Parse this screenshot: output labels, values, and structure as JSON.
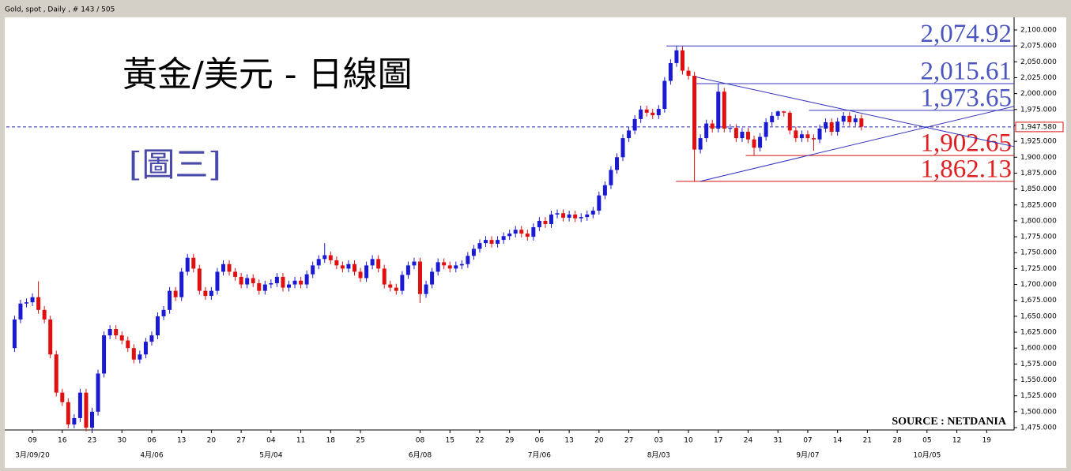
{
  "header": "Gold, spot , Daily , # 143 / 505",
  "chart_data": {
    "type": "candlestick",
    "title": "黃金/美元 - 日線圖",
    "subtitle": "[圖三]",
    "source": "SOURCE : NETDANIA",
    "up_color": "#1a1ad2",
    "down_color": "#e01010",
    "xlim": [
      -1.38,
      167.6
    ],
    "ylim": [
      1471.3,
      2112.4
    ],
    "yticks": [
      {
        "value": 1475,
        "label": "1,475.000"
      },
      {
        "value": 1500,
        "label": "1,500.000"
      },
      {
        "value": 1525,
        "label": "1,525.000"
      },
      {
        "value": 1550,
        "label": "1,550.000"
      },
      {
        "value": 1575,
        "label": "1,575.000"
      },
      {
        "value": 1600,
        "label": "1,600.000"
      },
      {
        "value": 1625,
        "label": "1,625.000"
      },
      {
        "value": 1650,
        "label": "1,650.000"
      },
      {
        "value": 1675,
        "label": "1,675.000"
      },
      {
        "value": 1700,
        "label": "1,700.000"
      },
      {
        "value": 1725,
        "label": "1,725.000"
      },
      {
        "value": 1750,
        "label": "1,750.000"
      },
      {
        "value": 1775,
        "label": "1,775.000"
      },
      {
        "value": 1800,
        "label": "1,800.000"
      },
      {
        "value": 1825,
        "label": "1,825.000"
      },
      {
        "value": 1850,
        "label": "1,850.000"
      },
      {
        "value": 1875,
        "label": "1,875.000"
      },
      {
        "value": 1900,
        "label": "1,900.000"
      },
      {
        "value": 1925,
        "label": "1,925.000"
      },
      {
        "value": 1950,
        "label": "1,950.000"
      },
      {
        "value": 1975,
        "label": "1,975.000"
      },
      {
        "value": 2000,
        "label": "2,000.000"
      },
      {
        "value": 2025,
        "label": "2,025.000"
      },
      {
        "value": 2050,
        "label": "2,050.000"
      },
      {
        "value": 2075,
        "label": "2,075.000"
      },
      {
        "value": 2100,
        "label": "2,100.000"
      }
    ],
    "xticks": [
      {
        "value": 3,
        "label": "09"
      },
      {
        "value": 8,
        "label": "16"
      },
      {
        "value": 13,
        "label": "23"
      },
      {
        "value": 18,
        "label": "30"
      },
      {
        "value": 23,
        "label": "06"
      },
      {
        "value": 28,
        "label": "13"
      },
      {
        "value": 33,
        "label": "20"
      },
      {
        "value": 38,
        "label": "27"
      },
      {
        "value": 43,
        "label": "04"
      },
      {
        "value": 48,
        "label": "11"
      },
      {
        "value": 53,
        "label": "18"
      },
      {
        "value": 58,
        "label": "25"
      },
      {
        "value": 68,
        "label": "08"
      },
      {
        "value": 73,
        "label": "15"
      },
      {
        "value": 78,
        "label": "22"
      },
      {
        "value": 83,
        "label": "29"
      },
      {
        "value": 88,
        "label": "06"
      },
      {
        "value": 93,
        "label": "13"
      },
      {
        "value": 98,
        "label": "20"
      },
      {
        "value": 103,
        "label": "27"
      },
      {
        "value": 108,
        "label": "03"
      },
      {
        "value": 113,
        "label": "10"
      },
      {
        "value": 118,
        "label": "17"
      },
      {
        "value": 123,
        "label": "24"
      },
      {
        "value": 128,
        "label": "31"
      },
      {
        "value": 133,
        "label": "07"
      },
      {
        "value": 138,
        "label": "14"
      },
      {
        "value": 143,
        "label": "21"
      },
      {
        "value": 148,
        "label": "28"
      },
      {
        "value": 153,
        "label": "05"
      },
      {
        "value": 158,
        "label": "12"
      },
      {
        "value": 163,
        "label": "19"
      }
    ],
    "xticks_month": [
      {
        "value": 3,
        "label": "3月/09/20"
      },
      {
        "value": 23,
        "label": "4月/06"
      },
      {
        "value": 43,
        "label": "5月/04"
      },
      {
        "value": 68,
        "label": "6月/08"
      },
      {
        "value": 88,
        "label": "7月/06"
      },
      {
        "value": 108,
        "label": "8月/03"
      },
      {
        "value": 133,
        "label": "9月/07"
      },
      {
        "value": 153,
        "label": "10月/05"
      }
    ],
    "current": {
      "value": 1947.58,
      "label": "1,947.580",
      "color": "#2020b0"
    },
    "levels": [
      {
        "value": 2074.92,
        "label": "2,074.92",
        "start": 109.3,
        "color": "#3535c0",
        "text_color": "#4a55c0"
      },
      {
        "value": 2015.61,
        "label": "2,015.61",
        "start": 113.9,
        "color": "#3535c0",
        "text_color": "#4a55c0"
      },
      {
        "value": 1973.65,
        "label": "1,973.65",
        "start": 133.2,
        "color": "#3535c0",
        "text_color": "#4a55c0"
      },
      {
        "value": 1902.65,
        "label": "1,902.65",
        "start": 122.6,
        "color": "#d01010",
        "text_color": "#e02020"
      },
      {
        "value": 1862.13,
        "label": "1,862.13",
        "start": 110.9,
        "color": "#d01010",
        "text_color": "#e02020"
      }
    ],
    "trendlines": [
      {
        "points": [
          [
            113.9,
            2026.8
          ],
          [
            167.6,
            1916.7
          ]
        ],
        "color": "#3535c0"
      },
      {
        "points": [
          [
            114.9,
            1862
          ],
          [
            167.6,
            1980
          ]
        ],
        "color": "#3535c0"
      }
    ],
    "ohlc": [
      [
        1600,
        1651,
        1594,
        1645
      ],
      [
        1645,
        1676,
        1639,
        1670
      ],
      [
        1670,
        1678,
        1664,
        1672
      ],
      [
        1672,
        1686,
        1666,
        1680
      ],
      [
        1680,
        1705,
        1654,
        1660
      ],
      [
        1660,
        1666,
        1639,
        1645
      ],
      [
        1645,
        1651,
        1584,
        1590
      ],
      [
        1590,
        1596,
        1524,
        1530
      ],
      [
        1530,
        1536,
        1509,
        1515
      ],
      [
        1515,
        1521,
        1474,
        1480
      ],
      [
        1480,
        1496,
        1474,
        1490
      ],
      [
        1490,
        1536,
        1484,
        1530
      ],
      [
        1530,
        1536,
        1469,
        1475
      ],
      [
        1475,
        1506,
        1469,
        1500
      ],
      [
        1500,
        1566,
        1494,
        1560
      ],
      [
        1560,
        1626,
        1554,
        1620
      ],
      [
        1620,
        1636,
        1614,
        1630
      ],
      [
        1630,
        1636,
        1614,
        1620
      ],
      [
        1620,
        1626,
        1606,
        1612
      ],
      [
        1612,
        1618,
        1594,
        1600
      ],
      [
        1600,
        1606,
        1576,
        1582
      ],
      [
        1582,
        1596,
        1576,
        1590
      ],
      [
        1590,
        1616,
        1584,
        1610
      ],
      [
        1610,
        1626,
        1604,
        1620
      ],
      [
        1620,
        1656,
        1614,
        1650
      ],
      [
        1650,
        1666,
        1644,
        1660
      ],
      [
        1660,
        1696,
        1654,
        1690
      ],
      [
        1690,
        1696,
        1674,
        1680
      ],
      [
        1680,
        1726,
        1674,
        1720
      ],
      [
        1720,
        1748,
        1714,
        1742
      ],
      [
        1742,
        1748,
        1719,
        1725
      ],
      [
        1725,
        1731,
        1684,
        1690
      ],
      [
        1690,
        1696,
        1676,
        1682
      ],
      [
        1682,
        1696,
        1676,
        1690
      ],
      [
        1690,
        1726,
        1684,
        1720
      ],
      [
        1720,
        1738,
        1714,
        1732
      ],
      [
        1732,
        1738,
        1714,
        1720
      ],
      [
        1720,
        1726,
        1706,
        1712
      ],
      [
        1712,
        1718,
        1694,
        1700
      ],
      [
        1700,
        1716,
        1694,
        1710
      ],
      [
        1710,
        1716,
        1696,
        1702
      ],
      [
        1702,
        1708,
        1684,
        1690
      ],
      [
        1690,
        1706,
        1684,
        1700
      ],
      [
        1700,
        1708,
        1694,
        1702
      ],
      [
        1702,
        1718,
        1696,
        1712
      ],
      [
        1712,
        1718,
        1689,
        1695
      ],
      [
        1695,
        1706,
        1689,
        1700
      ],
      [
        1700,
        1712,
        1694,
        1706
      ],
      [
        1706,
        1712,
        1694,
        1700
      ],
      [
        1700,
        1722,
        1694,
        1716
      ],
      [
        1716,
        1736,
        1710,
        1730
      ],
      [
        1730,
        1746,
        1724,
        1740
      ],
      [
        1740,
        1765,
        1734,
        1746
      ],
      [
        1746,
        1752,
        1732,
        1738
      ],
      [
        1738,
        1744,
        1724,
        1730
      ],
      [
        1730,
        1736,
        1719,
        1725
      ],
      [
        1725,
        1738,
        1719,
        1732
      ],
      [
        1732,
        1738,
        1714,
        1720
      ],
      [
        1720,
        1726,
        1704,
        1710
      ],
      [
        1710,
        1736,
        1704,
        1730
      ],
      [
        1730,
        1746,
        1724,
        1740
      ],
      [
        1740,
        1746,
        1719,
        1725
      ],
      [
        1725,
        1731,
        1694,
        1700
      ],
      [
        1700,
        1706,
        1689,
        1695
      ],
      [
        1695,
        1701,
        1684,
        1690
      ],
      [
        1690,
        1721,
        1684,
        1715
      ],
      [
        1715,
        1736,
        1709,
        1730
      ],
      [
        1730,
        1742,
        1724,
        1736
      ],
      [
        1736,
        1742,
        1671,
        1685
      ],
      [
        1685,
        1706,
        1679,
        1700
      ],
      [
        1700,
        1726,
        1694,
        1720
      ],
      [
        1720,
        1741,
        1714,
        1735
      ],
      [
        1735,
        1741,
        1724,
        1730
      ],
      [
        1730,
        1736,
        1719,
        1725
      ],
      [
        1725,
        1736,
        1719,
        1730
      ],
      [
        1730,
        1738,
        1724,
        1732
      ],
      [
        1732,
        1751,
        1726,
        1745
      ],
      [
        1745,
        1762,
        1739,
        1756
      ],
      [
        1756,
        1771,
        1750,
        1765
      ],
      [
        1765,
        1776,
        1759,
        1770
      ],
      [
        1770,
        1776,
        1758,
        1764
      ],
      [
        1764,
        1776,
        1758,
        1770
      ],
      [
        1770,
        1782,
        1764,
        1776
      ],
      [
        1776,
        1786,
        1770,
        1780
      ],
      [
        1780,
        1792,
        1774,
        1786
      ],
      [
        1786,
        1792,
        1774,
        1780
      ],
      [
        1780,
        1786,
        1769,
        1775
      ],
      [
        1775,
        1796,
        1769,
        1790
      ],
      [
        1790,
        1806,
        1784,
        1800
      ],
      [
        1800,
        1806,
        1789,
        1795
      ],
      [
        1795,
        1816,
        1789,
        1810
      ],
      [
        1810,
        1818,
        1804,
        1812
      ],
      [
        1812,
        1818,
        1799,
        1805
      ],
      [
        1805,
        1816,
        1799,
        1810
      ],
      [
        1810,
        1816,
        1798,
        1804
      ],
      [
        1804,
        1812,
        1798,
        1806
      ],
      [
        1806,
        1816,
        1800,
        1810
      ],
      [
        1810,
        1822,
        1804,
        1816
      ],
      [
        1816,
        1846,
        1810,
        1840
      ],
      [
        1840,
        1862,
        1834,
        1856
      ],
      [
        1856,
        1886,
        1850,
        1880
      ],
      [
        1880,
        1906,
        1874,
        1900
      ],
      [
        1900,
        1936,
        1894,
        1930
      ],
      [
        1930,
        1948,
        1924,
        1942
      ],
      [
        1942,
        1966,
        1936,
        1960
      ],
      [
        1960,
        1981,
        1954,
        1975
      ],
      [
        1975,
        1981,
        1964,
        1970
      ],
      [
        1970,
        1976,
        1960,
        1966
      ],
      [
        1966,
        1982,
        1960,
        1976
      ],
      [
        1976,
        2026,
        1970,
        2020
      ],
      [
        2020,
        2054,
        2014,
        2048
      ],
      [
        2048,
        2074.92,
        2042,
        2068
      ],
      [
        2068,
        2074,
        2030,
        2036
      ],
      [
        2036,
        2042,
        2022,
        2028
      ],
      [
        2028,
        2034,
        1862.13,
        1912
      ],
      [
        1912,
        1936,
        1906,
        1930
      ],
      [
        1930,
        1959,
        1924,
        1953
      ],
      [
        1953,
        1959,
        1939,
        1945
      ],
      [
        1945,
        2015.61,
        1939,
        2003
      ],
      [
        2003,
        2009,
        1939,
        1945
      ],
      [
        1945,
        1952,
        1939,
        1946
      ],
      [
        1946,
        1952,
        1924,
        1930
      ],
      [
        1930,
        1946,
        1924,
        1940
      ],
      [
        1940,
        1946,
        1922,
        1928
      ],
      [
        1928,
        1934,
        1902.65,
        1915
      ],
      [
        1915,
        1938,
        1909,
        1932
      ],
      [
        1932,
        1961,
        1926,
        1955
      ],
      [
        1955,
        1971,
        1949,
        1965
      ],
      [
        1965,
        1973.65,
        1959,
        1972
      ],
      [
        1972,
        1973,
        1964,
        1970
      ],
      [
        1970,
        1973,
        1936,
        1942
      ],
      [
        1942,
        1948,
        1924,
        1930
      ],
      [
        1930,
        1942,
        1924,
        1936
      ],
      [
        1936,
        1942,
        1924,
        1930
      ],
      [
        1930,
        1936,
        1910,
        1928
      ],
      [
        1928,
        1951,
        1922,
        1945
      ],
      [
        1945,
        1961,
        1939,
        1955
      ],
      [
        1955,
        1961,
        1934,
        1940
      ],
      [
        1940,
        1962,
        1934,
        1956
      ],
      [
        1956,
        1971,
        1950,
        1965
      ],
      [
        1965,
        1971,
        1949,
        1955
      ],
      [
        1955,
        1967,
        1949,
        1961
      ],
      [
        1961,
        1967,
        1942,
        1948
      ]
    ]
  }
}
